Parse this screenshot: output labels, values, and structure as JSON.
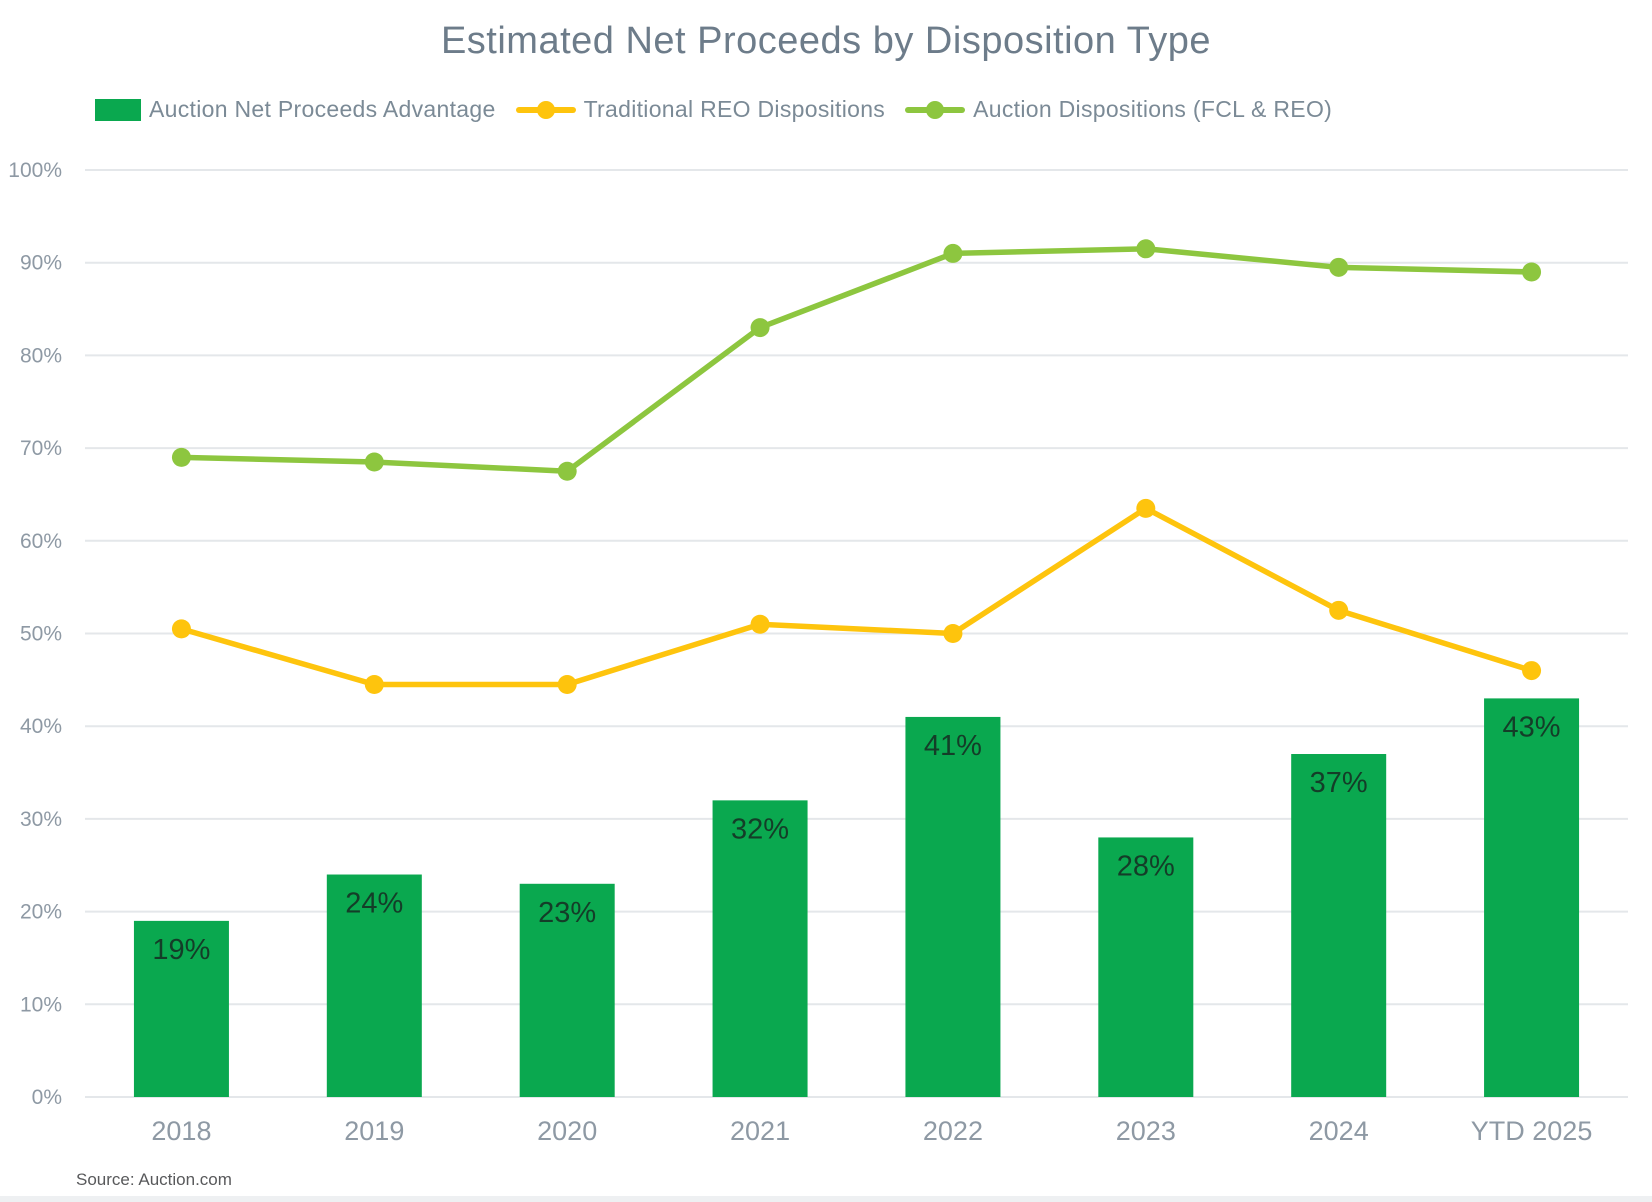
{
  "title": "Estimated Net Proceeds by Disposition Type",
  "source": "Source: Auction.com",
  "colors": {
    "bar": "#0aa84f",
    "bar_label": "#143d28",
    "traditional_line": "#fec40d",
    "auction_line": "#8dc63f",
    "grid": "#e4e7ea",
    "axis_text": "#8e99a4",
    "title_text": "#6d7c8a",
    "legend_text": "#7b8a96",
    "source_text": "#58595b"
  },
  "legend": [
    {
      "label": "Auction Net Proceeds Advantage",
      "marker": "swatch",
      "color": "#0aa84f"
    },
    {
      "label": "Traditional REO Dispositions",
      "marker": "line-dot",
      "color": "#fec40d"
    },
    {
      "label": "Auction Dispositions (FCL & REO)",
      "marker": "line-dot",
      "color": "#8dc63f"
    }
  ],
  "chart_data": {
    "type": "bar",
    "subtype": "bar+line combo",
    "categories": [
      "2018",
      "2019",
      "2020",
      "2021",
      "2022",
      "2023",
      "2024",
      "YTD 2025"
    ],
    "series": [
      {
        "name": "Auction Net Proceeds Advantage",
        "type": "bar",
        "color": "#0aa84f",
        "values": [
          19,
          24,
          23,
          32,
          41,
          28,
          37,
          43
        ],
        "labels": [
          "19%",
          "24%",
          "23%",
          "32%",
          "41%",
          "28%",
          "37%",
          "43%"
        ]
      },
      {
        "name": "Traditional REO Dispositions",
        "type": "line",
        "color": "#fec40d",
        "values": [
          50.5,
          44.5,
          44.5,
          51,
          50,
          63.5,
          52.5,
          46
        ]
      },
      {
        "name": "Auction Dispositions (FCL & REO)",
        "type": "line",
        "color": "#8dc63f",
        "values": [
          69,
          68.5,
          67.5,
          83,
          91,
          91.5,
          89.5,
          89
        ]
      }
    ],
    "title": "Estimated Net Proceeds by Disposition Type",
    "xlabel": "",
    "ylabel": "",
    "ylim": [
      0,
      100
    ],
    "ytick_step": 10,
    "yticks": [
      "0%",
      "10%",
      "20%",
      "30%",
      "40%",
      "50%",
      "60%",
      "70%",
      "80%",
      "90%",
      "100%"
    ],
    "grid": true,
    "legend_position": "top"
  }
}
